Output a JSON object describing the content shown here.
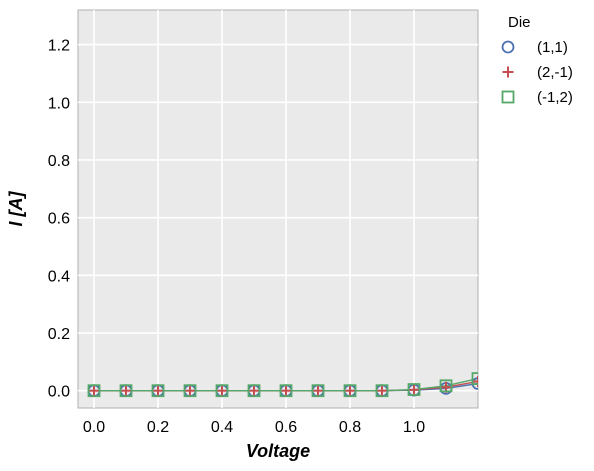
{
  "chart_data": {
    "type": "line",
    "title": "",
    "xlabel": "Voltage",
    "ylabel": "I [A]",
    "xlim": [
      -0.05,
      1.2
    ],
    "ylim": [
      -0.06,
      1.32
    ],
    "x_ticks": [
      0.0,
      0.2,
      0.4,
      0.6,
      0.8,
      1.0
    ],
    "x_tick_labels": [
      "0.0",
      "0.2",
      "0.4",
      "0.6",
      "0.8",
      "1.0"
    ],
    "y_ticks": [
      0.0,
      0.2,
      0.4,
      0.6,
      0.8,
      1.0,
      1.2
    ],
    "y_tick_labels": [
      "0.0",
      "0.2",
      "0.4",
      "0.6",
      "0.8",
      "1.0",
      "1.2"
    ],
    "grid": true,
    "legend_title": "Die",
    "legend_position": "outside-top-right",
    "x": [
      0.0,
      0.1,
      0.2,
      0.3,
      0.4,
      0.5,
      0.6,
      0.7,
      0.8,
      0.9,
      1.0,
      1.1,
      1.2
    ],
    "series": [
      {
        "name": "(1,1)",
        "marker": "circle",
        "color": "#4c72b0",
        "values": [
          0,
          0,
          0,
          0,
          0,
          0,
          0,
          0,
          0,
          0,
          0.002,
          0.008,
          0.025
        ]
      },
      {
        "name": "(2,-1)",
        "marker": "plus",
        "color": "#c44e52",
        "values": [
          0,
          0,
          0,
          0,
          0,
          0,
          0,
          0,
          0,
          0,
          0.003,
          0.012,
          0.032
        ]
      },
      {
        "name": "(-1,2)",
        "marker": "square",
        "color": "#55a868",
        "values": [
          0,
          0,
          0,
          0,
          0,
          0,
          0,
          0,
          0,
          0,
          0.004,
          0.017,
          0.042
        ]
      }
    ]
  }
}
